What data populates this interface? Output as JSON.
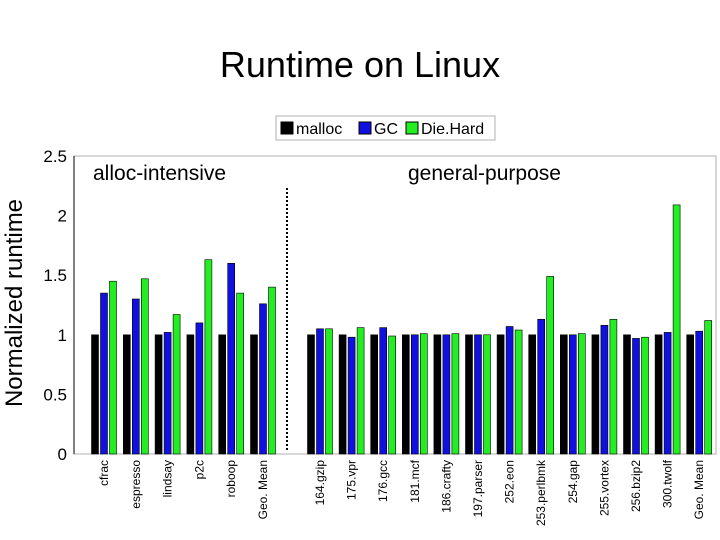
{
  "slide": {
    "title": "Runtime on Linux"
  },
  "chart_data": {
    "type": "bar",
    "title": "",
    "xlabel": "",
    "ylabel": "Normalized runtime",
    "ylim": [
      0,
      2.5
    ],
    "yticks": [
      "0",
      "0.5",
      "1",
      "1.5",
      "2",
      "2.5"
    ],
    "grid": false,
    "legend_position": "top-center",
    "regions": [
      "alloc-intensive",
      "general-purpose"
    ],
    "categories": [
      "cfrac",
      "espresso",
      "lindsay",
      "p2c",
      "roboop",
      "Geo. Mean",
      "164.gzip",
      "175.vpr",
      "176.gcc",
      "181.mcf",
      "186.crafty",
      "197.parser",
      "252.eon",
      "253.perlbmk",
      "254.gap",
      "255.vortex",
      "256.bzip2",
      "300.twolf",
      "Geo. Mean"
    ],
    "series": [
      {
        "name": "malloc",
        "color": "#000000",
        "values": [
          1.0,
          1.0,
          1.0,
          1.0,
          1.0,
          1.0,
          1.0,
          1.0,
          1.0,
          1.0,
          1.0,
          1.0,
          1.0,
          1.0,
          1.0,
          1.0,
          1.0,
          1.0,
          1.0
        ]
      },
      {
        "name": "GC",
        "color": "#1010e0",
        "values": [
          1.35,
          1.3,
          1.02,
          1.1,
          1.6,
          1.26,
          1.05,
          0.98,
          1.06,
          1.0,
          1.0,
          1.0,
          1.07,
          1.13,
          1.0,
          1.08,
          0.97,
          1.02,
          1.03
        ]
      },
      {
        "name": "Die.Hard",
        "color": "#22ee22",
        "values": [
          1.45,
          1.47,
          1.17,
          1.63,
          1.35,
          1.4,
          1.05,
          1.06,
          0.99,
          1.01,
          1.01,
          1.0,
          1.04,
          1.49,
          1.01,
          1.13,
          0.98,
          2.09,
          1.12
        ]
      }
    ]
  }
}
